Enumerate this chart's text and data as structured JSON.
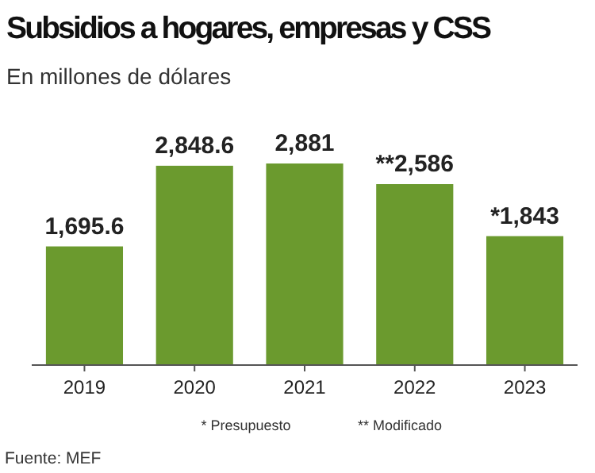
{
  "chart_data": {
    "type": "bar",
    "title": "Subsidios a hogares, empresas y CSS",
    "subtitle": "En millones de dólares",
    "categories": [
      "2019",
      "2020",
      "2021",
      "2022",
      "2023"
    ],
    "values": [
      1695.6,
      2848.6,
      2881,
      2586,
      1843
    ],
    "value_labels": [
      "1,695.6",
      "2,848.6",
      "2,881",
      "**2,586",
      "*1,843"
    ],
    "color": "#6b9a2e",
    "annotations": [
      "* Presupuesto",
      "** Modificado",
      "Fuente: MEF"
    ]
  }
}
